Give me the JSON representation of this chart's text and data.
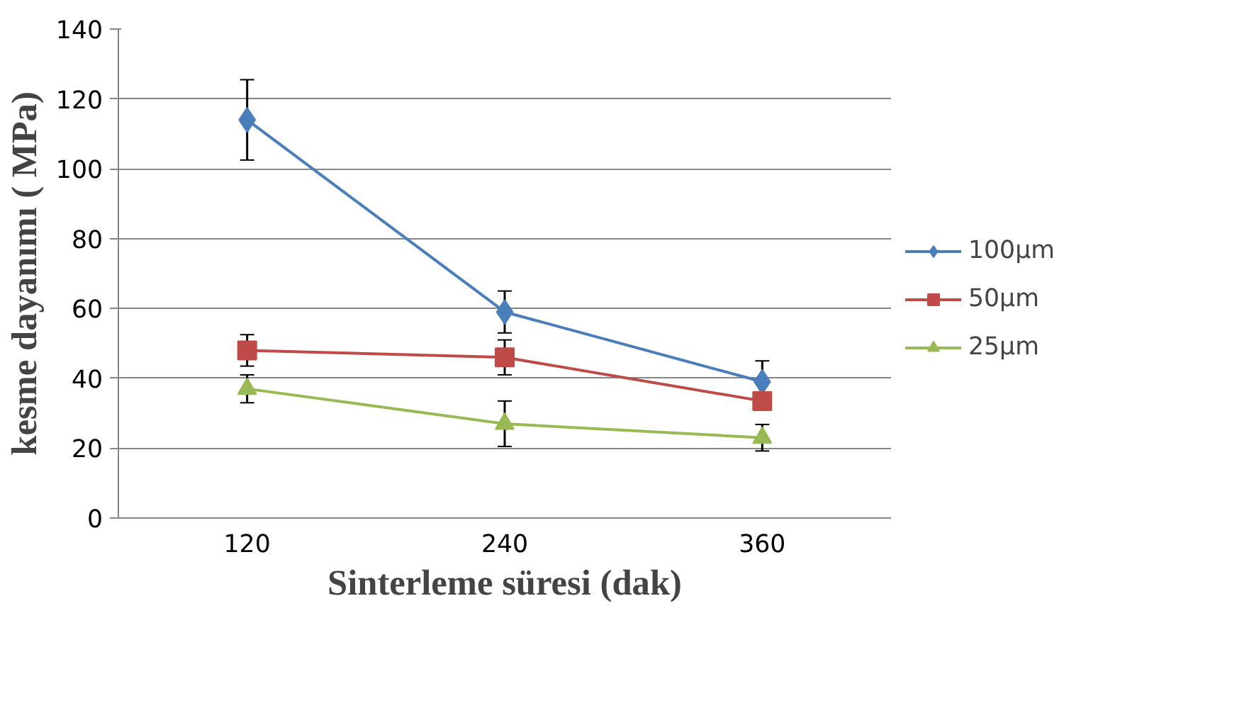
{
  "chart_data": {
    "type": "line",
    "xlabel": "Sinterleme süresi (dak)",
    "ylabel": "kesme dayanımı ( MPa)",
    "categories": [
      "120",
      "240",
      "360"
    ],
    "series": [
      {
        "name": "100µm",
        "color": "#4a7ebb",
        "marker": "diamond",
        "values": [
          114,
          59,
          39
        ],
        "errors": [
          11.5,
          6,
          6
        ]
      },
      {
        "name": "50µm",
        "color": "#be4b48",
        "marker": "square",
        "values": [
          48,
          46,
          33.5
        ],
        "errors": [
          4.5,
          5,
          null
        ]
      },
      {
        "name": "25µm",
        "color": "#98b954",
        "marker": "triangle",
        "values": [
          37,
          27,
          23
        ],
        "errors": [
          4,
          6.5,
          3.8
        ]
      }
    ],
    "ylim": [
      0,
      140
    ],
    "yticks": [
      0,
      20,
      40,
      60,
      80,
      100,
      120,
      140
    ],
    "grid": "y",
    "legend": "right",
    "line_style": "solid"
  }
}
